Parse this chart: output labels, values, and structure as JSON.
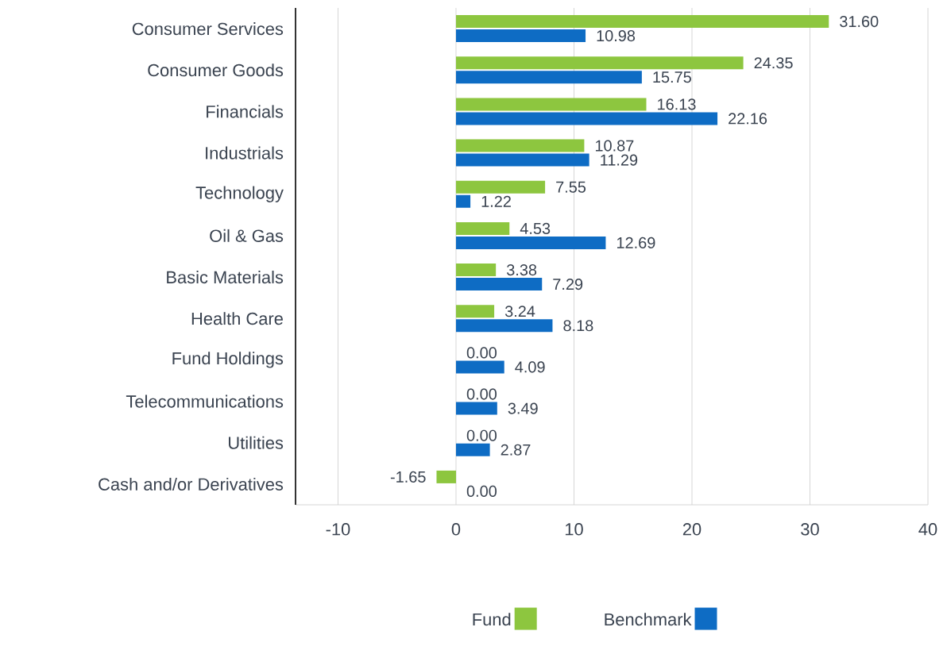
{
  "chart_data": {
    "type": "bar",
    "orientation": "horizontal",
    "categories": [
      "Consumer Services",
      "Consumer Goods",
      "Financials",
      "Industrials",
      "Technology",
      "Oil & Gas",
      "Basic Materials",
      "Health Care",
      "Fund Holdings",
      "Telecommunications",
      "Utilities",
      "Cash and/or Derivatives"
    ],
    "series": [
      {
        "name": "Fund",
        "color": "#8dc63f",
        "values": [
          31.6,
          24.35,
          16.13,
          10.87,
          7.55,
          4.53,
          3.38,
          3.24,
          0.0,
          0.0,
          0.0,
          -1.65
        ],
        "value_labels": [
          "31.60",
          "24.35",
          "16.13",
          "10.87",
          "7.55",
          "4.53",
          "3.38",
          "3.24",
          "0.00",
          "0.00",
          "0.00",
          "-1.65"
        ]
      },
      {
        "name": "Benchmark",
        "color": "#0e6cc4",
        "values": [
          10.98,
          15.75,
          22.16,
          11.29,
          1.22,
          12.69,
          7.29,
          8.18,
          4.09,
          3.49,
          2.87,
          0.0
        ],
        "value_labels": [
          "10.98",
          "15.75",
          "22.16",
          "11.29",
          "1.22",
          "12.69",
          "7.29",
          "8.18",
          "4.09",
          "3.49",
          "2.87",
          "0.00"
        ]
      }
    ],
    "xlim": [
      -13.6,
      40
    ],
    "xticks": [
      -10,
      0,
      10,
      20,
      30,
      40
    ],
    "grid": "x",
    "legend": "bottom"
  }
}
